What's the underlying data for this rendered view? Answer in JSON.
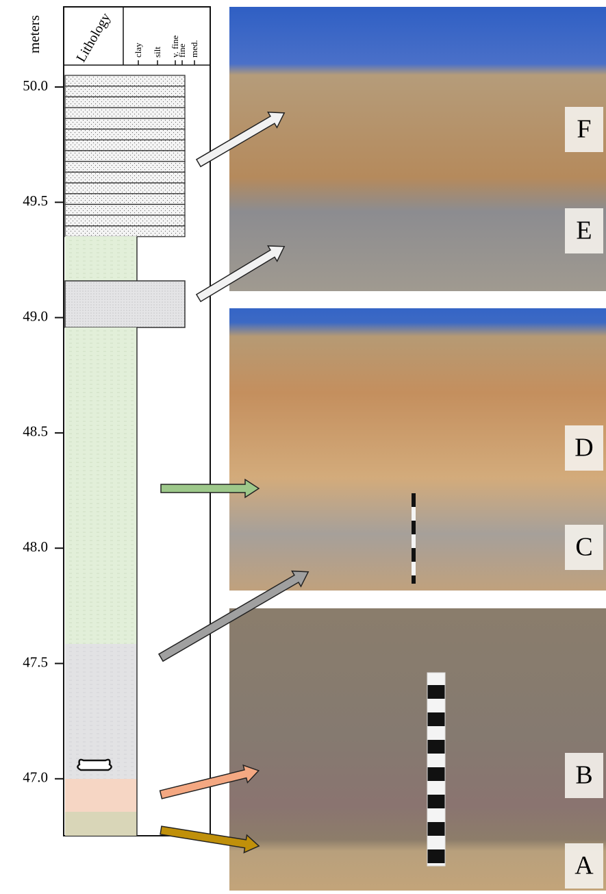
{
  "axis_label": "meters",
  "depth_ticks": [
    "50.0",
    "49.5",
    "49.0",
    "48.5",
    "48.0",
    "47.5",
    "47.0"
  ],
  "column": {
    "header": "Lithology",
    "grain_sizes": [
      "clay",
      "silt",
      "v. fine",
      "fine",
      "med."
    ]
  },
  "photo_labels": [
    "F",
    "E",
    "D",
    "C",
    "B",
    "A"
  ]
}
